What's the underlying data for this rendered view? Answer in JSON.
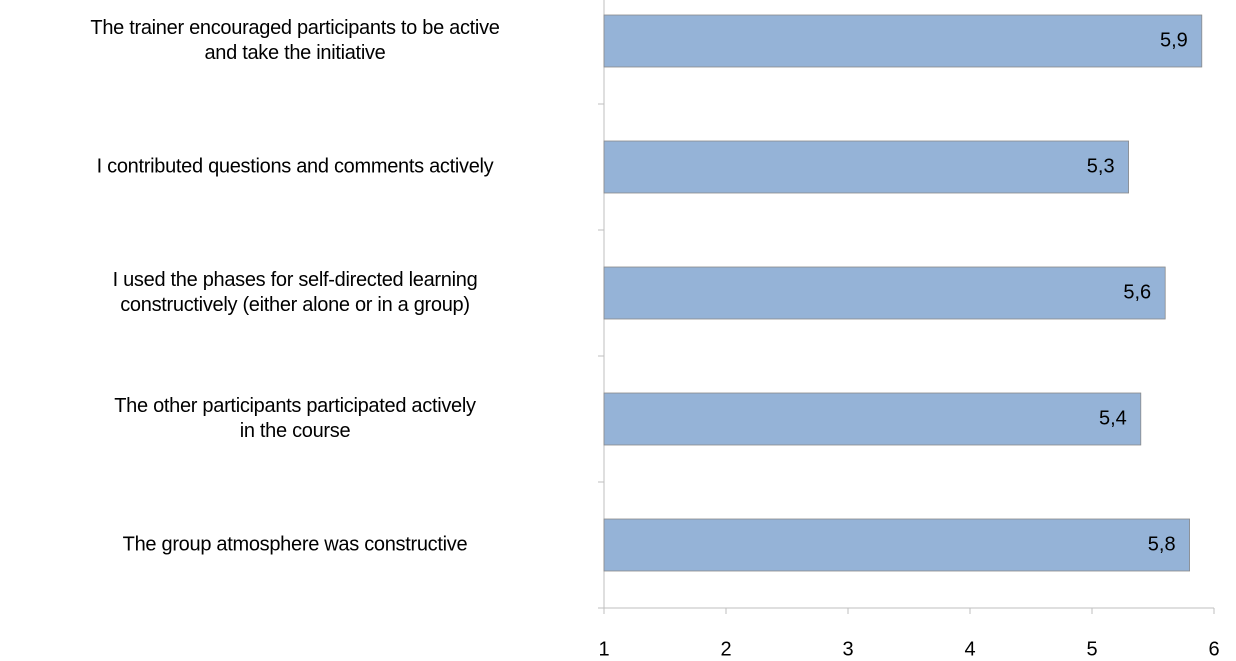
{
  "chart_data": {
    "type": "barh",
    "categories": [
      "The trainer encouraged participants to be active\nand take the initiative",
      "I contributed questions and comments actively",
      "I used the phases for self-directed learning\nconstructively (either alone or in a group)",
      "The other participants participated actively\nin the course",
      "The group atmosphere was constructive"
    ],
    "values": [
      5.9,
      5.3,
      5.6,
      5.4,
      5.8
    ],
    "value_labels": [
      "5,9",
      "5,3",
      "5,6",
      "5,4",
      "5,8"
    ],
    "color": "#95b3d7",
    "xlim": [
      1,
      6
    ],
    "xticks": [
      1,
      2,
      3,
      4,
      5,
      6
    ]
  }
}
